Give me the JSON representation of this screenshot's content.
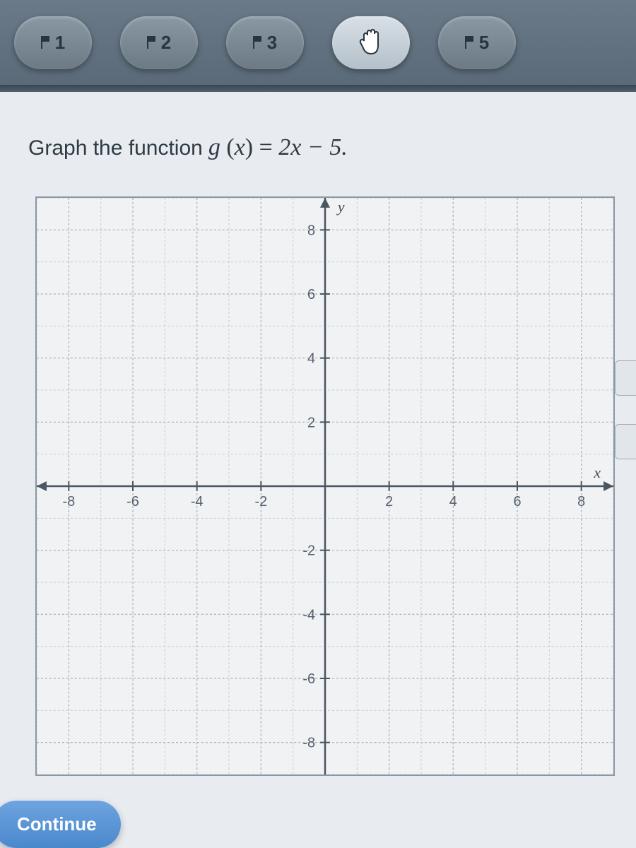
{
  "toolbar": {
    "buttons": [
      {
        "label": "1"
      },
      {
        "label": "2"
      },
      {
        "label": "3"
      },
      {
        "label": ""
      },
      {
        "label": "5"
      }
    ]
  },
  "question": {
    "prefix": "Graph the function",
    "func_name": "g",
    "func_arg": "x",
    "equals": "=",
    "expression": "2x − 5."
  },
  "graph": {
    "xlim": [
      -9,
      9
    ],
    "ylim": [
      -9,
      9
    ],
    "tick_step": 2,
    "label_step": 2,
    "x_axis_label": "x",
    "y_axis_label": "y",
    "major_grid_color": "#a8b4be",
    "minor_grid_color": "#c4ccd2",
    "axis_color": "#4a5662",
    "tick_labels_x": [
      "-8",
      "-6",
      "-4",
      "-2",
      "2",
      "4",
      "6",
      "8"
    ],
    "tick_labels_y": [
      "8",
      "6",
      "4",
      "2",
      "-2",
      "-4",
      "-6",
      "-8"
    ],
    "background_color": "#f0f2f4"
  },
  "continue_label": "Continue"
}
